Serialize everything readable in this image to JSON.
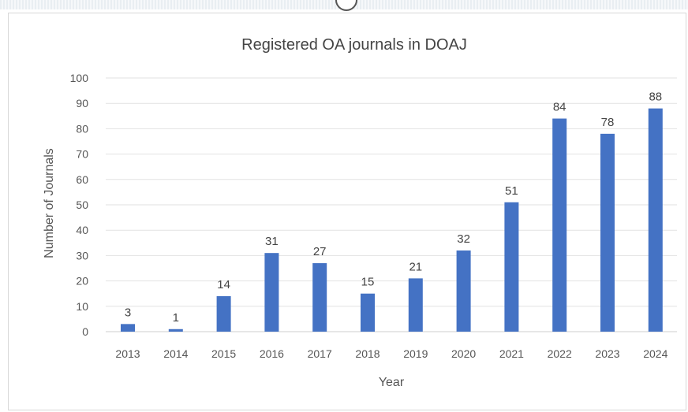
{
  "chart_data": {
    "type": "bar",
    "title": "Registered OA journals in DOAJ",
    "xlabel": "Year",
    "ylabel": "Number of Journals",
    "categories": [
      "2013",
      "2014",
      "2015",
      "2016",
      "2017",
      "2018",
      "2019",
      "2020",
      "2021",
      "2022",
      "2023",
      "2024"
    ],
    "values": [
      3,
      1,
      14,
      31,
      27,
      15,
      21,
      32,
      51,
      84,
      78,
      88
    ],
    "ylim": [
      0,
      100
    ],
    "yticks": [
      0,
      10,
      20,
      30,
      40,
      50,
      60,
      70,
      80,
      90,
      100
    ],
    "grid": true,
    "data_labels": true,
    "bar_color": "#4472c4"
  }
}
